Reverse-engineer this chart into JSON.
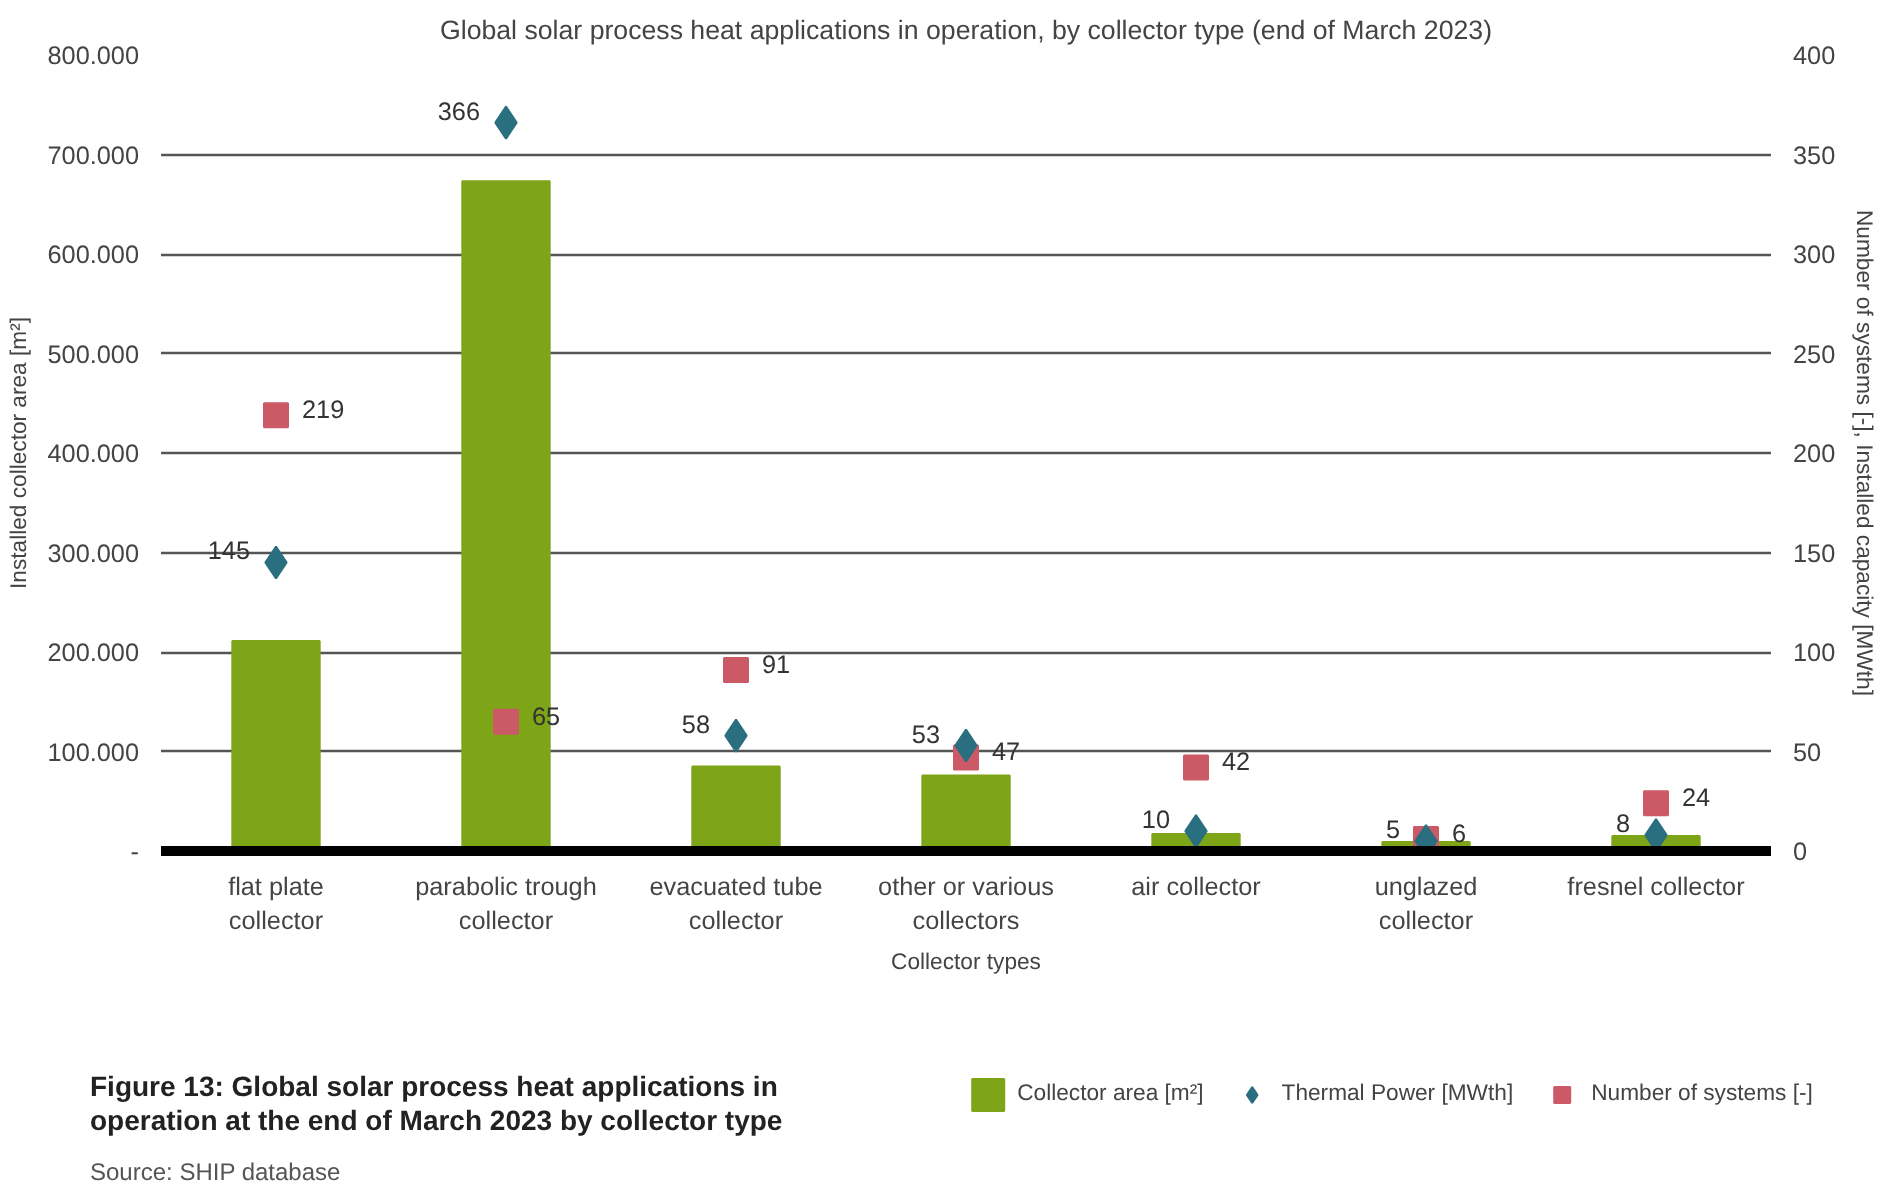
{
  "chart_data": {
    "type": "bar",
    "title": "Global solar process heat applications in operation, by collector type (end of March 2023)",
    "xlabel": "Collector types",
    "ylabel": "Installed collector area [m²]",
    "y2label": "Number of systems [-], Installed capacity [MWth]",
    "annotations": [
      "Figure 13: Global solar process heat applications in operation at the end of March 2023 by collector type",
      "Source:  SHIP database"
    ],
    "categories": [
      "flat plate\ncollector",
      "parabolic trough\ncollector",
      "evacuated tube\ncollector",
      "other or various\ncollectors",
      "air collector",
      "unglazed\ncollector",
      "fresnel collector"
    ],
    "series": [
      {
        "name": "Collector area [m²]",
        "color": "#7ea518",
        "values": [
          211000,
          673000,
          85000,
          76000,
          17000,
          9000,
          15000
        ]
      },
      {
        "name": "Thermal Power [MWth]",
        "type": "scatter",
        "marker": "diamond",
        "axis": "y2",
        "color": "#2a6f80",
        "values": [
          145,
          366,
          58,
          53,
          10,
          5,
          8
        ],
        "value_labels": [
          "145",
          "366",
          "58",
          "53",
          "10",
          "5",
          "8"
        ]
      },
      {
        "name": "Number of systems [-]",
        "type": "scatter",
        "marker": "square",
        "axis": "y2",
        "color": "#cc5a66",
        "values": [
          219,
          65,
          91,
          47,
          42,
          6,
          24
        ],
        "value_labels": [
          "219",
          "65",
          "91",
          "47",
          "42",
          "6",
          "24"
        ]
      }
    ],
    "ylim": [
      0,
      800000
    ],
    "yticks": [
      {
        "value": 0,
        "label": "-"
      },
      {
        "value": 100000,
        "label": "100.000"
      },
      {
        "value": 200000,
        "label": "200.000"
      },
      {
        "value": 300000,
        "label": "300.000"
      },
      {
        "value": 400000,
        "label": "400.000"
      },
      {
        "value": 500000,
        "label": "500.000"
      },
      {
        "value": 600000,
        "label": "600.000"
      },
      {
        "value": 700000,
        "label": "700.000"
      },
      {
        "value": 800000,
        "label": "800.000"
      }
    ],
    "y2lim": [
      0,
      400
    ],
    "y2ticks": [
      0,
      50,
      100,
      150,
      200,
      250,
      300,
      350,
      400
    ],
    "grid": "y",
    "legend": "bottom right"
  }
}
